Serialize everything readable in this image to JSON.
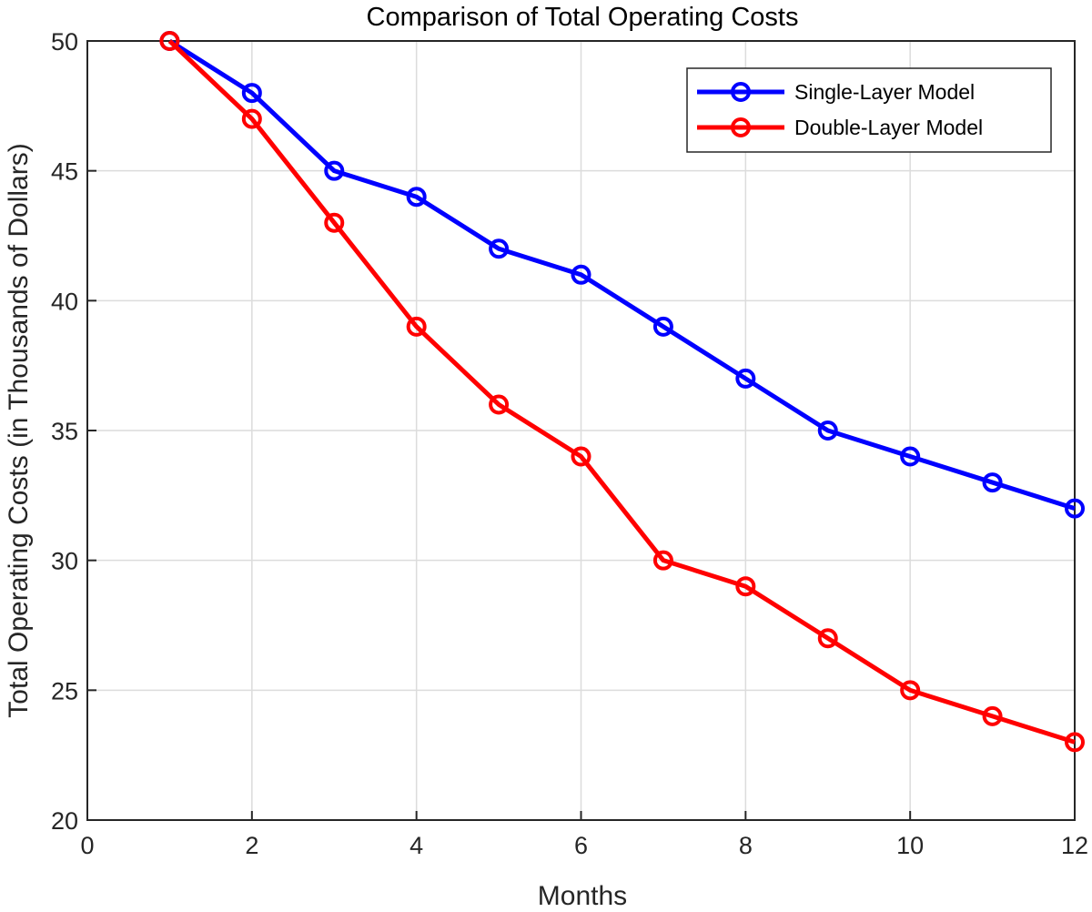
{
  "chart_data": {
    "type": "line",
    "title": "Comparison of Total Operating Costs",
    "xlabel": "Months",
    "ylabel": "Total Operating Costs (in Thousands of Dollars)",
    "xlim": [
      0,
      12
    ],
    "ylim": [
      20,
      50
    ],
    "xticks": [
      0,
      2,
      4,
      6,
      8,
      10,
      12
    ],
    "yticks": [
      20,
      25,
      30,
      35,
      40,
      45,
      50
    ],
    "grid": true,
    "legend_position": "top-right",
    "x": [
      1,
      2,
      3,
      4,
      5,
      6,
      7,
      8,
      9,
      10,
      11,
      12
    ],
    "series": [
      {
        "name": "Single-Layer Model",
        "color": "#0000ff",
        "marker": "circle",
        "values": [
          50,
          48,
          45,
          44,
          42,
          41,
          39,
          37,
          35,
          34,
          33,
          32
        ]
      },
      {
        "name": "Double-Layer Model",
        "color": "#ff0000",
        "marker": "circle",
        "values": [
          50,
          47,
          43,
          39,
          36,
          34,
          30,
          29,
          27,
          25,
          24,
          23
        ]
      }
    ]
  }
}
